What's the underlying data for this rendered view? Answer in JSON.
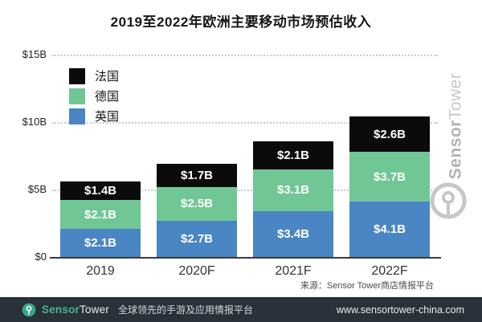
{
  "title": "2019至2022年欧洲主要移动市场预估收入",
  "chart_data": {
    "type": "bar",
    "stacked": true,
    "title": "2019至2022年欧洲主要移动市场预估收入",
    "categories": [
      "2019",
      "2020F",
      "2021F",
      "2022F"
    ],
    "series": [
      {
        "name": "英国",
        "color": "#4a85c4",
        "values": [
          2.1,
          2.7,
          3.4,
          4.1
        ],
        "labels": [
          "$2.1B",
          "$2.7B",
          "$3.4B",
          "$4.1B"
        ]
      },
      {
        "name": "德国",
        "color": "#70c795",
        "values": [
          2.1,
          2.5,
          3.1,
          3.7
        ],
        "labels": [
          "$2.1B",
          "$2.5B",
          "$3.1B",
          "$3.7B"
        ]
      },
      {
        "name": "法国",
        "color": "#0b0b0b",
        "values": [
          1.4,
          1.7,
          2.1,
          2.6
        ],
        "labels": [
          "$1.4B",
          "$1.7B",
          "$2.1B",
          "$2.6B"
        ]
      }
    ],
    "totals": [
      5.6,
      6.9,
      8.6,
      10.4
    ],
    "y_ticks": [
      {
        "label": "$0",
        "value": 0
      },
      {
        "label": "$5B",
        "value": 5
      },
      {
        "label": "$10B",
        "value": 10
      },
      {
        "label": "$15B",
        "value": 15
      }
    ],
    "ylim": [
      0,
      15
    ],
    "grid": "horizontal-dotted",
    "legend": {
      "position": "top-left",
      "order": [
        "法国",
        "德国",
        "英国"
      ]
    },
    "value_unit": "USD billions"
  },
  "source_note": "来源：Sensor Tower商店情报平台",
  "watermark": {
    "sensor": "Sensor",
    "tower": "Tower"
  },
  "footer": {
    "brand_sensor": "Sensor",
    "brand_tower": "Tower",
    "tagline": "全球领先的手游及应用情报平台",
    "url": "www.sensortower-china.com",
    "colors": {
      "background": "#29323b",
      "accent_green": "#45b493"
    }
  }
}
